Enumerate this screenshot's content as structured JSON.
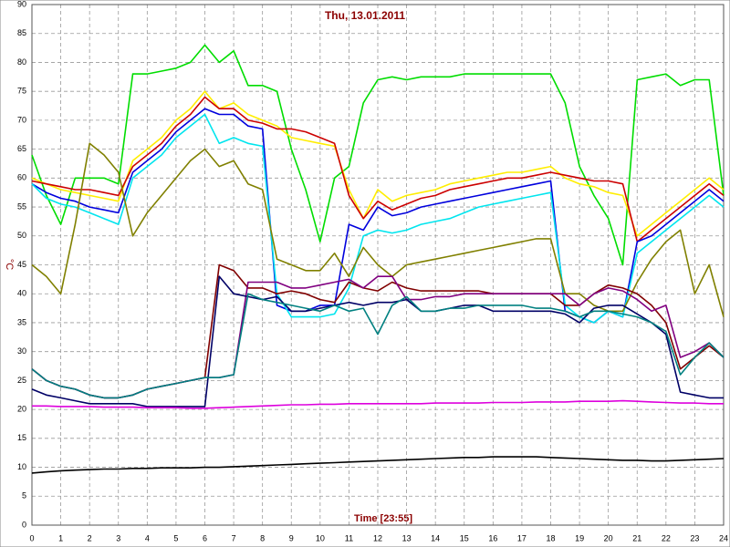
{
  "chart_data": {
    "type": "line",
    "title": "Thu, 13.01.2011",
    "x_label": "Time [23:55]",
    "y_label": "°C",
    "x": [
      0,
      0.5,
      1,
      1.5,
      2,
      2.5,
      3,
      3.5,
      4,
      4.5,
      5,
      5.5,
      6,
      6.5,
      7,
      7.5,
      8,
      8.5,
      9,
      9.5,
      10,
      10.5,
      11,
      11.5,
      12,
      12.5,
      13,
      13.5,
      14,
      14.5,
      15,
      15.5,
      16,
      16.5,
      17,
      17.5,
      18,
      18.5,
      19,
      19.5,
      20,
      20.5,
      21,
      21.5,
      22,
      22.5,
      23,
      23.5,
      24
    ],
    "xlim": [
      0,
      24
    ],
    "xticks": [
      0,
      1,
      2,
      3,
      4,
      5,
      6,
      7,
      8,
      9,
      10,
      11,
      12,
      13,
      14,
      15,
      16,
      17,
      18,
      19,
      20,
      21,
      22,
      23,
      24
    ],
    "ylim": [
      0,
      90
    ],
    "yticks": [
      0,
      5,
      10,
      15,
      20,
      25,
      30,
      35,
      40,
      45,
      50,
      55,
      60,
      65,
      70,
      75,
      80,
      85,
      90
    ],
    "grid": true,
    "series": [
      {
        "color": "#00dd00",
        "values": [
          64,
          57,
          52,
          60,
          60,
          60,
          59,
          78,
          78,
          78.5,
          79,
          80,
          83,
          80,
          82,
          76,
          76,
          75,
          65,
          58,
          49,
          60,
          62,
          73,
          77,
          77.5,
          77,
          77.5,
          77.5,
          77.5,
          78,
          78,
          78,
          78,
          78,
          78,
          78,
          73,
          62,
          57,
          53,
          45,
          77,
          77.5,
          78,
          76,
          77,
          77,
          57
        ]
      },
      {
        "color": "#ffee00",
        "values": [
          60,
          59,
          58,
          57.5,
          57,
          56.5,
          56,
          63,
          65,
          67,
          70,
          72,
          75,
          72,
          73,
          71,
          70,
          69,
          67,
          66.5,
          66,
          65.5,
          58,
          53,
          58,
          56,
          57,
          57.5,
          58,
          59,
          59.5,
          60,
          60.5,
          61,
          61,
          61.5,
          62,
          60,
          59,
          58.5,
          57.5,
          57,
          50,
          52,
          54,
          56,
          58,
          60,
          58
        ]
      },
      {
        "color": "#cc0000",
        "values": [
          59.5,
          59,
          58.5,
          58,
          58,
          57.5,
          57,
          62,
          64,
          66,
          69,
          71,
          74,
          72,
          72,
          70,
          69.5,
          68.5,
          68.5,
          68,
          67,
          66,
          57,
          53,
          56,
          54.5,
          55.5,
          56.5,
          57,
          58,
          58.5,
          59,
          59.5,
          60,
          60,
          60.5,
          61,
          60.5,
          60,
          59.5,
          59.5,
          59,
          49,
          51,
          53,
          55,
          57,
          59,
          57
        ]
      },
      {
        "color": "#0000dd",
        "values": [
          59,
          57.5,
          56.5,
          56,
          55,
          54.5,
          54,
          61,
          63,
          65,
          68,
          70,
          72,
          71,
          71,
          69,
          68.5,
          38,
          37,
          37,
          38,
          38,
          52,
          51,
          55,
          53.5,
          54,
          55,
          55.5,
          56,
          56.5,
          57,
          57.5,
          58,
          58.5,
          59,
          59.5,
          37,
          36,
          35,
          37,
          36,
          49,
          50,
          52,
          54,
          56,
          58,
          56
        ]
      },
      {
        "color": "#00e5ee",
        "values": [
          59,
          56.5,
          55.5,
          55,
          54,
          53,
          52,
          60,
          62,
          64,
          67,
          69,
          71,
          66,
          67,
          66,
          65.5,
          40,
          36,
          36,
          36,
          36.5,
          41,
          50,
          51,
          50.5,
          51,
          52,
          52.5,
          53,
          54,
          55,
          55.5,
          56,
          56.5,
          57,
          57.5,
          38,
          36,
          35,
          37,
          36,
          47,
          49,
          51,
          53,
          55,
          57,
          55
        ]
      },
      {
        "color": "#808000",
        "values": [
          45,
          43,
          40,
          52,
          66,
          64,
          61,
          50,
          54,
          57,
          60,
          63,
          65,
          62,
          63,
          59,
          58,
          46,
          45,
          44,
          44,
          47,
          43,
          48,
          45,
          43,
          45,
          45.5,
          46,
          46.5,
          47,
          47.5,
          48,
          48.5,
          49,
          49.5,
          49.5,
          40,
          40,
          38,
          37,
          37,
          42,
          46,
          49,
          51,
          40,
          45,
          36
        ]
      },
      {
        "color": "#800000",
        "values": [
          27,
          25,
          24,
          23.5,
          22.5,
          22,
          22,
          22.5,
          23.5,
          24,
          24.5,
          25,
          25.5,
          45,
          44,
          41,
          41,
          40,
          40.5,
          40,
          39,
          38.5,
          42,
          41,
          40.5,
          42,
          41,
          40.5,
          40.5,
          40.5,
          40.5,
          40.5,
          40,
          40,
          40,
          40,
          40,
          38,
          38,
          40,
          41.5,
          41,
          40,
          38,
          35,
          27,
          29,
          31,
          29
        ]
      },
      {
        "color": "#800080",
        "values": [
          27,
          25,
          24,
          23.5,
          22.5,
          22,
          22,
          22.5,
          23.5,
          24,
          24.5,
          25,
          25.5,
          25.5,
          26,
          42,
          42,
          42,
          41,
          41,
          41.5,
          42,
          42.5,
          41,
          43,
          43,
          39,
          39,
          39.5,
          39.5,
          40,
          40,
          40,
          40,
          40,
          40,
          40,
          40,
          38,
          40,
          41,
          40.5,
          39,
          37,
          38,
          29,
          30,
          31.5,
          29
        ]
      },
      {
        "color": "#000066",
        "values": [
          23.5,
          22.5,
          22,
          21.5,
          21,
          21,
          21,
          21,
          20.5,
          20.5,
          20.5,
          20.5,
          20.5,
          43,
          40,
          39.5,
          39,
          39.5,
          37,
          37,
          37.5,
          38,
          38.5,
          38,
          38.5,
          38.5,
          39,
          37,
          37,
          37.5,
          38,
          38,
          37,
          37,
          37,
          37,
          37,
          36.5,
          35,
          37.5,
          38,
          38,
          36.5,
          35,
          33,
          23,
          22.5,
          22,
          22
        ]
      },
      {
        "color": "#008080",
        "values": [
          27,
          25,
          24,
          23.5,
          22.5,
          22,
          22,
          22.5,
          23.5,
          24,
          24.5,
          25,
          25.5,
          25.5,
          26,
          40,
          39,
          38.5,
          38,
          37.5,
          37,
          38,
          37,
          37.5,
          33,
          38,
          39.5,
          37,
          37,
          37.5,
          37.5,
          38,
          38,
          38,
          38,
          37.5,
          37.5,
          37,
          36,
          37,
          37,
          36.5,
          36,
          35,
          33.5,
          26,
          29,
          31.5,
          29
        ]
      },
      {
        "color": "#dd00dd",
        "values": [
          20.6,
          20.6,
          20.5,
          20.5,
          20.5,
          20.4,
          20.4,
          20.4,
          20.3,
          20.3,
          20.3,
          20.2,
          20.2,
          20.3,
          20.4,
          20.5,
          20.6,
          20.7,
          20.8,
          20.8,
          20.9,
          20.9,
          21,
          21,
          21,
          21,
          21,
          21,
          21.1,
          21.1,
          21.1,
          21.1,
          21.2,
          21.2,
          21.2,
          21.3,
          21.3,
          21.3,
          21.4,
          21.4,
          21.4,
          21.5,
          21.4,
          21.3,
          21.2,
          21.1,
          21.1,
          21,
          21
        ]
      },
      {
        "color": "#000000",
        "values": [
          9,
          9.2,
          9.4,
          9.5,
          9.6,
          9.7,
          9.7,
          9.8,
          9.8,
          9.9,
          9.9,
          9.9,
          10,
          10,
          10.1,
          10.2,
          10.3,
          10.4,
          10.5,
          10.6,
          10.7,
          10.8,
          10.9,
          11,
          11.1,
          11.2,
          11.3,
          11.4,
          11.5,
          11.6,
          11.7,
          11.7,
          11.8,
          11.8,
          11.8,
          11.8,
          11.7,
          11.6,
          11.5,
          11.4,
          11.3,
          11.2,
          11.2,
          11.1,
          11.1,
          11.2,
          11.3,
          11.4,
          11.5
        ]
      }
    ]
  }
}
